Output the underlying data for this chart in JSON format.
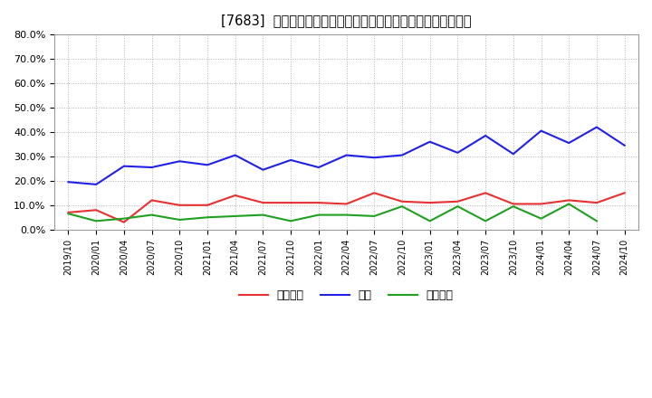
{
  "title": "[7683]  売上債権、在庫、買入債務の総資産に対する比率の推移",
  "x_labels": [
    "2019/10",
    "2020/01",
    "2020/04",
    "2020/07",
    "2020/10",
    "2021/01",
    "2021/04",
    "2021/07",
    "2021/10",
    "2022/01",
    "2022/04",
    "2022/07",
    "2022/10",
    "2023/01",
    "2023/04",
    "2023/07",
    "2023/10",
    "2024/01",
    "2024/04",
    "2024/07",
    "2024/10"
  ],
  "uriage": [
    0.07,
    0.08,
    0.03,
    0.12,
    0.1,
    0.1,
    0.14,
    0.11,
    0.11,
    0.11,
    0.105,
    0.15,
    0.115,
    0.11,
    0.115,
    0.15,
    0.105,
    0.105,
    0.12,
    0.11,
    0.15
  ],
  "zaiko": [
    0.195,
    0.185,
    0.26,
    0.255,
    0.28,
    0.265,
    0.305,
    0.245,
    0.285,
    0.255,
    0.305,
    0.295,
    0.305,
    0.36,
    0.315,
    0.385,
    0.31,
    0.405,
    0.355,
    0.42,
    0.345
  ],
  "kainy": [
    0.065,
    0.035,
    0.045,
    0.06,
    0.04,
    0.05,
    0.055,
    0.06,
    0.035,
    0.06,
    0.06,
    0.055,
    0.095,
    0.035,
    0.095,
    0.035,
    0.095,
    0.045,
    0.105,
    0.035,
    null
  ],
  "uriage_color": "#e83030",
  "zaiko_color": "#2020e8",
  "kainy_color": "#20a020",
  "uriage_label": "売上債権",
  "zaiko_label": "在庫",
  "kainy_label": "買入債務",
  "ylim": [
    0.0,
    0.8
  ],
  "yticks": [
    0.0,
    0.1,
    0.2,
    0.3,
    0.4,
    0.5,
    0.6,
    0.7,
    0.8
  ],
  "background_color": "#ffffff",
  "plot_bg_color": "#ffffff"
}
